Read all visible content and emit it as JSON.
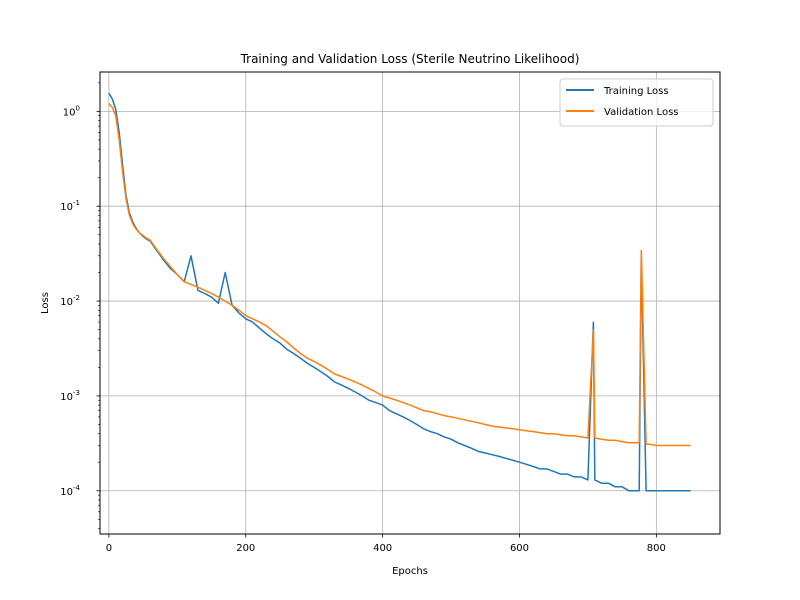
{
  "chart_data": {
    "type": "line",
    "title": "Training and Validation Loss (Sterile Neutrino Likelihood)",
    "xlabel": "Epochs",
    "ylabel": "Loss",
    "yscale": "log",
    "xlim": [
      -13,
      893
    ],
    "ylim": [
      3.5e-05,
      2.6
    ],
    "xticks": [
      0,
      200,
      400,
      600,
      800
    ],
    "xtick_labels": [
      "0",
      "200",
      "400",
      "600",
      "800"
    ],
    "yticks": [
      0.0001,
      0.001,
      0.01,
      0.1,
      1
    ],
    "ytick_labels": [
      "10^-4",
      "10^-3",
      "10^-2",
      "10^-1",
      "10^0"
    ],
    "grid": true,
    "legend_position": "top-right",
    "series": [
      {
        "name": "Training Loss",
        "color": "#1f77b4",
        "x": [
          0,
          5,
          10,
          15,
          20,
          25,
          30,
          35,
          40,
          45,
          50,
          55,
          60,
          70,
          80,
          90,
          100,
          110,
          120,
          130,
          140,
          150,
          160,
          170,
          180,
          190,
          200,
          210,
          220,
          230,
          240,
          250,
          260,
          270,
          280,
          290,
          300,
          310,
          320,
          330,
          340,
          350,
          360,
          370,
          380,
          390,
          400,
          410,
          420,
          430,
          440,
          450,
          460,
          470,
          480,
          490,
          500,
          510,
          520,
          530,
          540,
          550,
          560,
          570,
          580,
          590,
          600,
          610,
          620,
          630,
          640,
          650,
          660,
          670,
          680,
          690,
          700,
          708,
          710,
          720,
          730,
          740,
          750,
          760,
          770,
          775,
          778,
          785,
          790,
          800,
          810,
          820,
          830,
          840,
          846,
          850
        ],
        "y": [
          1.55,
          1.35,
          1.05,
          0.6,
          0.27,
          0.13,
          0.085,
          0.068,
          0.058,
          0.052,
          0.048,
          0.045,
          0.043,
          0.034,
          0.027,
          0.022,
          0.019,
          0.016,
          0.03,
          0.013,
          0.012,
          0.011,
          0.0095,
          0.02,
          0.009,
          0.0075,
          0.0065,
          0.006,
          0.0052,
          0.0045,
          0.004,
          0.0036,
          0.0031,
          0.0028,
          0.0025,
          0.0022,
          0.002,
          0.0018,
          0.0016,
          0.0014,
          0.0013,
          0.0012,
          0.0011,
          0.001,
          0.0009,
          0.00085,
          0.0008,
          0.0007,
          0.00065,
          0.0006,
          0.00055,
          0.0005,
          0.00045,
          0.00042,
          0.0004,
          0.00037,
          0.00035,
          0.00032,
          0.0003,
          0.00028,
          0.00026,
          0.00025,
          0.00024,
          0.00023,
          0.00022,
          0.00021,
          0.0002,
          0.00019,
          0.00018,
          0.00017,
          0.00017,
          0.00016,
          0.00015,
          0.00015,
          0.00014,
          0.00014,
          0.00013,
          0.006,
          0.00013,
          0.00012,
          0.00012,
          0.00011,
          0.00011,
          0.0001,
          0.0001,
          0.0001,
          0.03,
          0.0001,
          0.0001,
          0.0001,
          0.0001,
          0.0001,
          0.0001,
          0.0001,
          0.0001,
          0.0001
        ]
      },
      {
        "name": "Validation Loss",
        "color": "#ff7f0e",
        "x": [
          0,
          5,
          10,
          15,
          20,
          25,
          30,
          35,
          40,
          45,
          50,
          55,
          60,
          70,
          80,
          90,
          100,
          110,
          120,
          130,
          140,
          150,
          160,
          170,
          180,
          190,
          200,
          210,
          220,
          230,
          240,
          250,
          260,
          270,
          280,
          290,
          300,
          310,
          320,
          330,
          340,
          350,
          360,
          370,
          380,
          390,
          400,
          410,
          420,
          430,
          440,
          450,
          460,
          470,
          480,
          490,
          500,
          510,
          520,
          530,
          540,
          550,
          560,
          570,
          580,
          590,
          600,
          610,
          620,
          630,
          640,
          650,
          660,
          670,
          680,
          690,
          700,
          708,
          710,
          720,
          730,
          740,
          750,
          760,
          770,
          775,
          778,
          785,
          790,
          800,
          810,
          820,
          830,
          840,
          846,
          850
        ],
        "y": [
          1.2,
          1.1,
          0.9,
          0.5,
          0.23,
          0.12,
          0.08,
          0.065,
          0.057,
          0.052,
          0.049,
          0.046,
          0.044,
          0.035,
          0.028,
          0.023,
          0.019,
          0.016,
          0.015,
          0.014,
          0.013,
          0.012,
          0.011,
          0.01,
          0.009,
          0.008,
          0.007,
          0.0065,
          0.006,
          0.0055,
          0.0048,
          0.0042,
          0.0037,
          0.0032,
          0.0028,
          0.0025,
          0.0023,
          0.0021,
          0.0019,
          0.0017,
          0.0016,
          0.0015,
          0.0014,
          0.0013,
          0.0012,
          0.0011,
          0.001,
          0.00095,
          0.0009,
          0.00085,
          0.0008,
          0.00075,
          0.0007,
          0.00068,
          0.00065,
          0.00062,
          0.0006,
          0.00058,
          0.00056,
          0.00054,
          0.00052,
          0.0005,
          0.00048,
          0.00047,
          0.00046,
          0.00045,
          0.00044,
          0.00043,
          0.00042,
          0.00041,
          0.0004,
          0.0004,
          0.00039,
          0.00038,
          0.00038,
          0.00037,
          0.00036,
          0.005,
          0.00036,
          0.00035,
          0.00034,
          0.00034,
          0.00033,
          0.00032,
          0.00032,
          0.00032,
          0.034,
          0.00031,
          0.00031,
          0.0003,
          0.0003,
          0.0003,
          0.0003,
          0.0003,
          0.0003,
          0.0003
        ]
      }
    ]
  }
}
